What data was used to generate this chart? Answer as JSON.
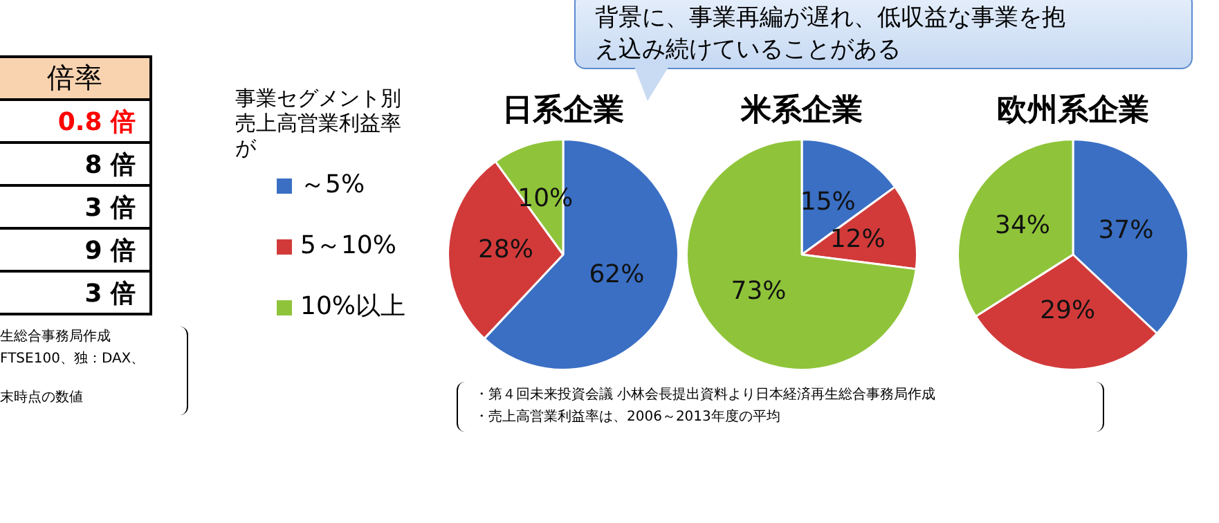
{
  "chart_data": [
    {
      "type": "other",
      "title": "倍率",
      "categories": [
        "0.8 倍",
        "8 倍",
        "3 倍",
        "9 倍",
        "3 倍"
      ],
      "annotations": [
        "生総合事務局作成",
        "FTSE100、独：DAX、",
        "末時点の数値"
      ]
    },
    {
      "type": "pie",
      "title": "日系企業",
      "categories": [
        "～5%",
        "5～10%",
        "10%以上"
      ],
      "values": [
        62,
        28,
        10
      ],
      "value_labels": [
        "62%",
        "28%",
        "10%"
      ],
      "colors": [
        "#3a6fc4",
        "#d23a3a",
        "#8fc43a"
      ],
      "legend": "left",
      "legend_title": "事業セグメント別売上高営業利益率が",
      "annotations": [
        "背景に、事業再編が遅れ、低収益な事業を抱え込み続けていることがある"
      ]
    },
    {
      "type": "pie",
      "title": "米系企業",
      "categories": [
        null,
        null,
        null
      ],
      "values": [
        15,
        12,
        73
      ],
      "value_labels": [
        "15%",
        "12%",
        "73%"
      ],
      "colors": [
        "#3a6fc4",
        "#d23a3a",
        "#8fc43a"
      ],
      "annotations": [
        "・第４回未来投資会議 小林会長提出資料より日本経済再生総合事務局作成",
        "・売上高営業利益率は、2006～2013年度の平均"
      ]
    },
    {
      "type": "pie",
      "title": "欧州系企業",
      "categories": [
        null,
        null,
        null
      ],
      "values": [
        37,
        29,
        34
      ],
      "value_labels": [
        "37%",
        "29%",
        "34%"
      ],
      "colors": [
        "#3a6fc4",
        "#d23a3a",
        "#8fc43a"
      ]
    }
  ]
}
